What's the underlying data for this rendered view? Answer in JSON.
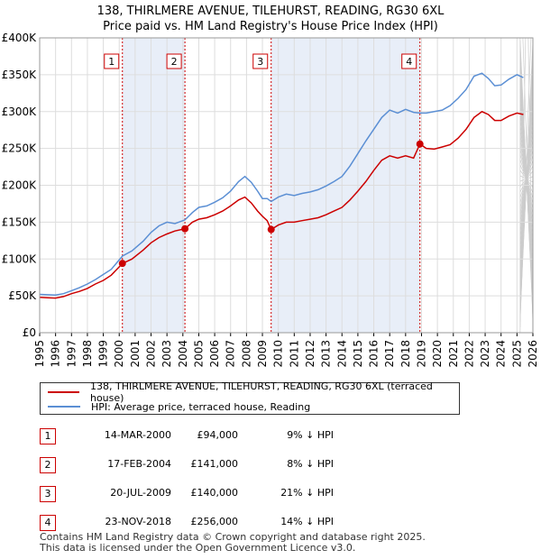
{
  "header": {
    "line1": "138, THIRLMERE AVENUE, TILEHURST, READING, RG30 6XL",
    "line2": "Price paid vs. HM Land Registry's House Price Index (HPI)"
  },
  "legend": {
    "property": "138, THIRLMERE AVENUE, TILEHURST, READING, RG30 6XL (terraced house)",
    "hpi": "HPI: Average price, terraced house, Reading"
  },
  "colors": {
    "property": "#cc0000",
    "hpi": "#5b8fd4",
    "shade": "#e8eef8",
    "grid": "#dddddd"
  },
  "chart_data": {
    "type": "line",
    "title": "Price paid vs. HM Land Registry's House Price Index (HPI)",
    "xlim": [
      1995,
      2026
    ],
    "ylim": [
      0,
      400000
    ],
    "yticks": [
      {
        "value": 0,
        "label": "£0"
      },
      {
        "value": 50000,
        "label": "£50K"
      },
      {
        "value": 100000,
        "label": "£100K"
      },
      {
        "value": 150000,
        "label": "£150K"
      },
      {
        "value": 200000,
        "label": "£200K"
      },
      {
        "value": 250000,
        "label": "£250K"
      },
      {
        "value": 300000,
        "label": "£300K"
      },
      {
        "value": 350000,
        "label": "£350K"
      },
      {
        "value": 400000,
        "label": "£400K"
      }
    ],
    "xticks": [
      "1995",
      "1996",
      "1997",
      "1998",
      "1999",
      "2000",
      "2001",
      "2002",
      "2003",
      "2004",
      "2005",
      "2006",
      "2007",
      "2008",
      "2009",
      "2010",
      "2011",
      "2012",
      "2013",
      "2014",
      "2015",
      "2016",
      "2017",
      "2018",
      "2019",
      "2020",
      "2021",
      "2022",
      "2023",
      "2024",
      "2025",
      "2026"
    ],
    "shaded_ranges": [
      [
        2000.2,
        2004.13
      ],
      [
        2009.55,
        2018.9
      ]
    ],
    "series": [
      {
        "name": "138, THIRLMERE AVENUE, TILEHURST, READING, RG30 6XL (terraced house)",
        "x": [
          1995,
          1995.5,
          1996,
          1996.5,
          1997,
          1997.5,
          1998,
          1998.5,
          1999,
          1999.5,
          2000.2,
          2000.8,
          2001.5,
          2002,
          2002.5,
          2003,
          2003.5,
          2004.13,
          2004.6,
          2005,
          2005.5,
          2006,
          2006.5,
          2007,
          2007.5,
          2007.9,
          2008.3,
          2008.7,
          2009,
          2009.3,
          2009.55,
          2010,
          2010.5,
          2011,
          2011.5,
          2012,
          2012.5,
          2013,
          2013.5,
          2014,
          2014.5,
          2015,
          2015.5,
          2016,
          2016.5,
          2017,
          2017.5,
          2018,
          2018.5,
          2018.9,
          2019.3,
          2019.8,
          2020.3,
          2020.8,
          2021.3,
          2021.8,
          2022.3,
          2022.8,
          2023.2,
          2023.6,
          2024,
          2024.5,
          2025,
          2025.4
        ],
        "values": [
          48000,
          47500,
          47000,
          49000,
          53000,
          56000,
          60000,
          66000,
          71000,
          78000,
          94000,
          100000,
          112000,
          122000,
          129000,
          134000,
          138000,
          141000,
          150000,
          154000,
          156000,
          160000,
          165000,
          172000,
          180000,
          184000,
          176000,
          165000,
          158000,
          152000,
          140000,
          146000,
          150000,
          150000,
          152000,
          154000,
          156000,
          160000,
          165000,
          170000,
          180000,
          192000,
          205000,
          220000,
          234000,
          240000,
          237000,
          240000,
          237000,
          256000,
          250000,
          249000,
          252000,
          255000,
          264000,
          276000,
          292000,
          300000,
          296000,
          288000,
          288000,
          294000,
          298000,
          296000
        ]
      },
      {
        "name": "HPI: Average price, terraced house, Reading",
        "x": [
          1995,
          1995.5,
          1996,
          1996.5,
          1997,
          1997.5,
          1998,
          1998.5,
          1999,
          1999.5,
          2000.2,
          2000.8,
          2001.5,
          2002,
          2002.5,
          2003,
          2003.5,
          2004.13,
          2004.6,
          2005,
          2005.5,
          2006,
          2006.5,
          2007,
          2007.5,
          2007.9,
          2008.3,
          2008.7,
          2009,
          2009.3,
          2009.55,
          2010,
          2010.5,
          2011,
          2011.5,
          2012,
          2012.5,
          2013,
          2013.5,
          2014,
          2014.5,
          2015,
          2015.5,
          2016,
          2016.5,
          2017,
          2017.5,
          2018,
          2018.5,
          2018.9,
          2019.3,
          2019.8,
          2020.3,
          2020.8,
          2021.3,
          2021.8,
          2022.3,
          2022.8,
          2023.2,
          2023.6,
          2024,
          2024.5,
          2025,
          2025.4
        ],
        "values": [
          52000,
          51500,
          51000,
          53000,
          57000,
          61000,
          66000,
          72000,
          79000,
          86000,
          104000,
          111000,
          124000,
          136000,
          145000,
          150000,
          148000,
          153000,
          163000,
          170000,
          172000,
          177000,
          183000,
          192000,
          205000,
          212000,
          204000,
          192000,
          182000,
          182000,
          178000,
          184000,
          188000,
          186000,
          189000,
          191000,
          194000,
          199000,
          205000,
          212000,
          226000,
          243000,
          260000,
          276000,
          292000,
          302000,
          298000,
          303000,
          299000,
          298000,
          298000,
          300000,
          302000,
          308000,
          318000,
          330000,
          348000,
          352000,
          345000,
          335000,
          336000,
          344000,
          350000,
          346000
        ]
      }
    ],
    "sale_markers": [
      {
        "label": "1",
        "x": 2000.2,
        "value": 94000
      },
      {
        "label": "2",
        "x": 2004.13,
        "value": 141000
      },
      {
        "label": "3",
        "x": 2009.55,
        "value": 140000
      },
      {
        "label": "4",
        "x": 2018.9,
        "value": 256000
      }
    ]
  },
  "sales": [
    {
      "num": "1",
      "date": "14-MAR-2000",
      "price": "£94,000",
      "hpi": "9% ↓ HPI"
    },
    {
      "num": "2",
      "date": "17-FEB-2004",
      "price": "£141,000",
      "hpi": "8% ↓ HPI"
    },
    {
      "num": "3",
      "date": "20-JUL-2009",
      "price": "£140,000",
      "hpi": "21% ↓ HPI"
    },
    {
      "num": "4",
      "date": "23-NOV-2018",
      "price": "£256,000",
      "hpi": "14% ↓ HPI"
    }
  ],
  "footer": {
    "line1": "Contains HM Land Registry data © Crown copyright and database right 2025.",
    "line2": "This data is licensed under the Open Government Licence v3.0."
  }
}
